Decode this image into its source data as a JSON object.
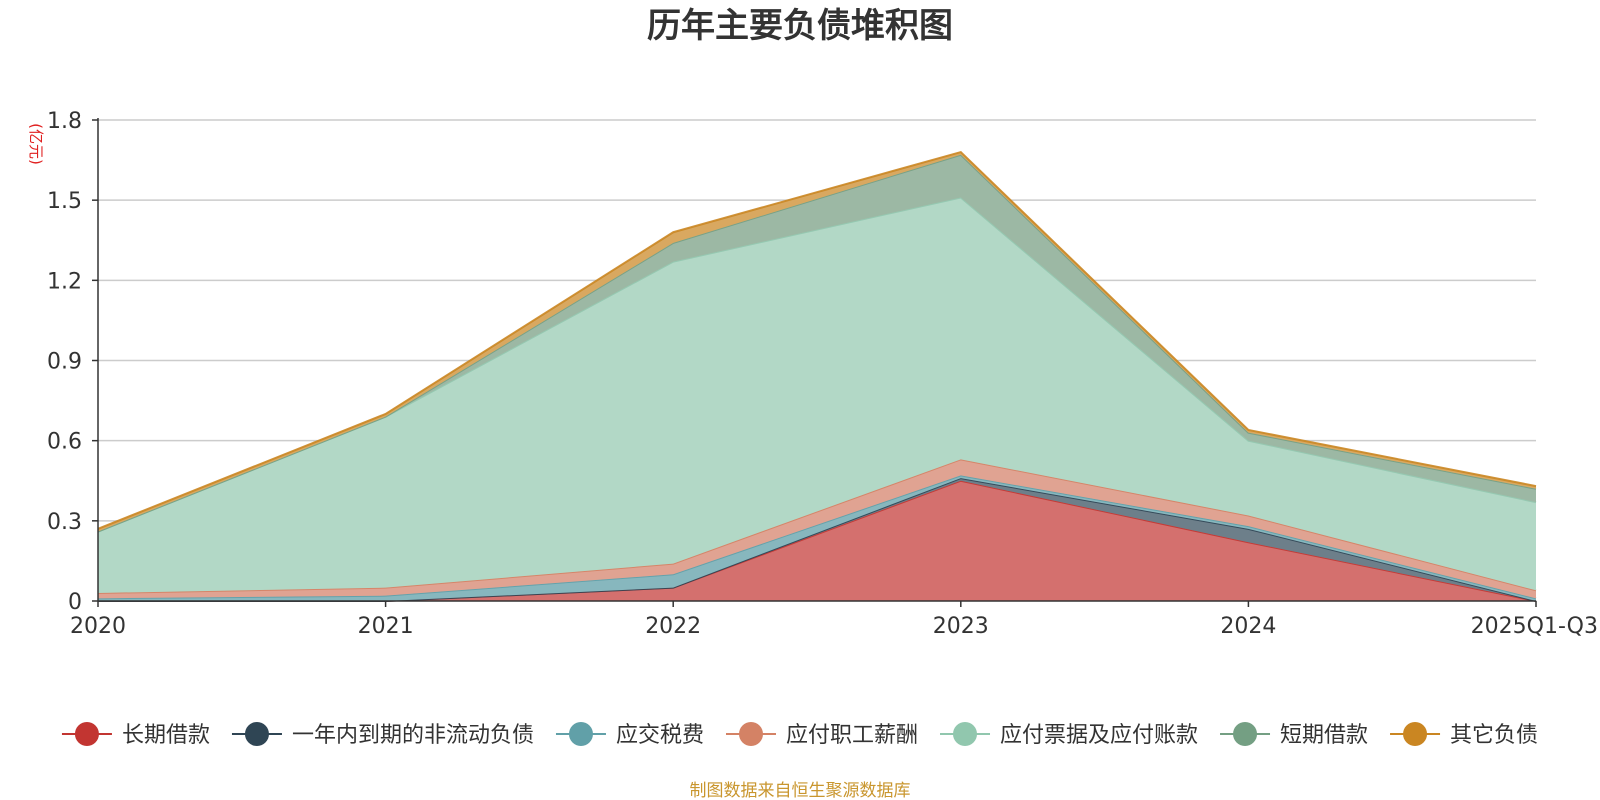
{
  "chart_data": {
    "type": "area",
    "stacked": true,
    "title": "历年主要负债堆积图",
    "unit_label": "(亿元)",
    "source_note": "制图数据来自恒生聚源数据库",
    "categories": [
      "2020",
      "2021",
      "2022",
      "2023",
      "2024",
      "2025Q1-Q3"
    ],
    "ylim": [
      0,
      1.8
    ],
    "yticks": [
      0,
      0.3,
      0.6,
      0.9,
      1.2,
      1.5,
      1.8
    ],
    "ytick_labels": [
      "0",
      "0.3",
      "0.6",
      "0.9",
      "1.2",
      "1.5",
      "1.8"
    ],
    "grid": true,
    "legend_position": "bottom",
    "series": [
      {
        "name": "长期借款",
        "color": "#c23531",
        "fill": "#d4706e",
        "values": [
          0,
          0,
          0.05,
          0.45,
          0.22,
          0
        ]
      },
      {
        "name": "一年内到期的非流动负债",
        "color": "#2f4554",
        "fill": "#6d7f8a",
        "values": [
          0,
          0,
          0,
          0.01,
          0.05,
          0
        ]
      },
      {
        "name": "应交税费",
        "color": "#61a0a8",
        "fill": "#87b7be",
        "values": [
          0.01,
          0.02,
          0.05,
          0.01,
          0.01,
          0.01
        ]
      },
      {
        "name": "应付职工薪酬",
        "color": "#d48265",
        "fill": "#e0a392",
        "values": [
          0.02,
          0.03,
          0.04,
          0.06,
          0.04,
          0.03
        ]
      },
      {
        "name": "应付票据及应付账款",
        "color": "#91c7ae",
        "fill": "#b2d8c6",
        "values": [
          0.23,
          0.64,
          1.13,
          0.98,
          0.28,
          0.33
        ]
      },
      {
        "name": "短期借款",
        "color": "#749f83",
        "fill": "#9cb8a4",
        "values": [
          0,
          0,
          0.07,
          0.16,
          0.03,
          0.05
        ]
      },
      {
        "name": "其它负债",
        "color": "#ca8622",
        "fill": "#d9a860",
        "values": [
          0.01,
          0.01,
          0.04,
          0.01,
          0.01,
          0.01
        ]
      }
    ]
  }
}
